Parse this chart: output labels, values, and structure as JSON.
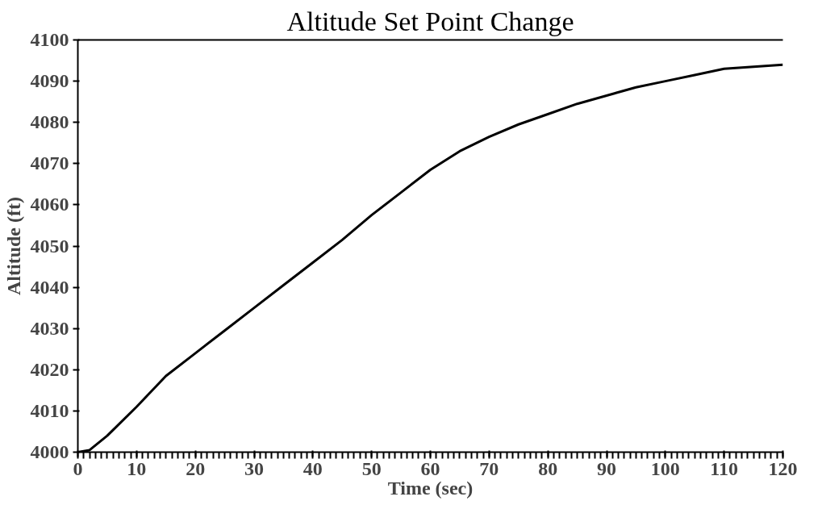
{
  "chart_data": {
    "type": "line",
    "title": "Altitude Set Point Change",
    "xlabel": "Time (sec)",
    "ylabel": "Altitude (ft)",
    "x": [
      0,
      2,
      5,
      10,
      15,
      20,
      25,
      30,
      35,
      40,
      45,
      50,
      55,
      60,
      65,
      70,
      75,
      80,
      85,
      90,
      95,
      100,
      105,
      110,
      115,
      120
    ],
    "series": [
      {
        "color": "#000000",
        "values": [
          4000,
          4000.5,
          4004,
          4011,
          4018.5,
          4024,
          4029.5,
          4035,
          4040.5,
          4046,
          4051.5,
          4057.5,
          4063,
          4068.5,
          4073,
          4076.5,
          4079.5,
          4082,
          4084.5,
          4086.5,
          4088.5,
          4090,
          4091.5,
          4093,
          4093.5,
          4094
        ]
      }
    ],
    "xlim": [
      0,
      120
    ],
    "ylim": [
      4000,
      4100
    ],
    "xticks": [
      0,
      10,
      20,
      30,
      40,
      50,
      60,
      70,
      80,
      90,
      100,
      110,
      120
    ],
    "yticks": [
      4000,
      4010,
      4020,
      4030,
      4040,
      4050,
      4060,
      4070,
      4080,
      4090,
      4100
    ],
    "grid": false,
    "marker": "none",
    "line_style": "solid"
  }
}
